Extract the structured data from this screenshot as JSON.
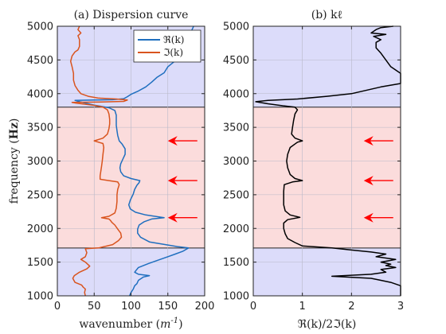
{
  "chart_data": [
    {
      "type": "line",
      "title": "(a) Dispersion curve",
      "xlabel": "wavenumber (m^-1)",
      "ylabel": "frequency (Hz)",
      "xlim": [
        0,
        200
      ],
      "ylim": [
        1000,
        5000
      ],
      "xticks": [
        0,
        50,
        100,
        150,
        200
      ],
      "yticks": [
        1000,
        1500,
        2000,
        2500,
        3000,
        3500,
        4000,
        4500,
        5000
      ],
      "grid": true,
      "legend": {
        "placement": "top-right",
        "entries": [
          "ℜ(k)",
          "ℑ(k)"
        ]
      },
      "bands": [
        {
          "from": 1000,
          "to": 1710,
          "color": "#dcdcfa"
        },
        {
          "from": 1710,
          "to": 3800,
          "color": "#fbdcdc"
        },
        {
          "from": 3800,
          "to": 5000,
          "color": "#dcdcfa"
        }
      ],
      "arrows": [
        {
          "y": 3300,
          "x_from": 190,
          "x_to": 150
        },
        {
          "y": 2710,
          "x_from": 190,
          "x_to": 150
        },
        {
          "y": 2160,
          "x_from": 190,
          "x_to": 150
        }
      ],
      "series": [
        {
          "name": "ℜ(k)",
          "color": "#1f6fbf",
          "points": [
            [
              98,
              1000
            ],
            [
              100,
              1050
            ],
            [
              103,
              1100
            ],
            [
              105,
              1150
            ],
            [
              108,
              1180
            ],
            [
              110,
              1230
            ],
            [
              117,
              1280
            ],
            [
              125,
              1300
            ],
            [
              110,
              1320
            ],
            [
              105,
              1350
            ],
            [
              107,
              1380
            ],
            [
              110,
              1420
            ],
            [
              124,
              1480
            ],
            [
              137,
              1530
            ],
            [
              150,
              1580
            ],
            [
              160,
              1620
            ],
            [
              170,
              1660
            ],
            [
              178,
              1710
            ],
            [
              163,
              1730
            ],
            [
              125,
              1800
            ],
            [
              113,
              1870
            ],
            [
              109,
              1930
            ],
            [
              109,
              1990
            ],
            [
              111,
              2050
            ],
            [
              118,
              2100
            ],
            [
              128,
              2140
            ],
            [
              145,
              2160
            ],
            [
              120,
              2200
            ],
            [
              106,
              2240
            ],
            [
              99,
              2290
            ],
            [
              97,
              2350
            ],
            [
              99,
              2420
            ],
            [
              103,
              2510
            ],
            [
              105,
              2580
            ],
            [
              108,
              2640
            ],
            [
              111,
              2680
            ],
            [
              112,
              2710
            ],
            [
              100,
              2740
            ],
            [
              90,
              2780
            ],
            [
              86,
              2840
            ],
            [
              85,
              2900
            ],
            [
              86,
              2960
            ],
            [
              89,
              3030
            ],
            [
              92,
              3100
            ],
            [
              92,
              3180
            ],
            [
              88,
              3250
            ],
            [
              84,
              3300
            ],
            [
              82,
              3380
            ],
            [
              81,
              3450
            ],
            [
              80,
              3530
            ],
            [
              80,
              3600
            ],
            [
              80,
              3680
            ],
            [
              78,
              3750
            ],
            [
              70,
              3790
            ],
            [
              50,
              3830
            ],
            [
              30,
              3880
            ],
            [
              24,
              3900
            ],
            [
              50,
              3905
            ],
            [
              75,
              3910
            ],
            [
              90,
              3925
            ],
            [
              95,
              3955
            ],
            [
              100,
              3990
            ],
            [
              110,
              4040
            ],
            [
              120,
              4100
            ],
            [
              128,
              4170
            ],
            [
              135,
              4240
            ],
            [
              145,
              4310
            ],
            [
              150,
              4400
            ],
            [
              158,
              4470
            ],
            [
              163,
              4570
            ],
            [
              170,
              4670
            ],
            [
              175,
              4780
            ],
            [
              180,
              4880
            ],
            [
              185,
              5000
            ]
          ]
        },
        {
          "name": "ℑ(k)",
          "color": "#d9541e",
          "points": [
            [
              38,
              1000
            ],
            [
              37,
              1050
            ],
            [
              38,
              1100
            ],
            [
              35,
              1130
            ],
            [
              33,
              1160
            ],
            [
              24,
              1200
            ],
            [
              21,
              1260
            ],
            [
              23,
              1300
            ],
            [
              30,
              1350
            ],
            [
              40,
              1400
            ],
            [
              44,
              1440
            ],
            [
              38,
              1500
            ],
            [
              32,
              1540
            ],
            [
              38,
              1580
            ],
            [
              40,
              1640
            ],
            [
              38,
              1700
            ],
            [
              56,
              1710
            ],
            [
              75,
              1760
            ],
            [
              83,
              1820
            ],
            [
              87,
              1870
            ],
            [
              86,
              1930
            ],
            [
              82,
              1990
            ],
            [
              78,
              2050
            ],
            [
              74,
              2090
            ],
            [
              72,
              2120
            ],
            [
              70,
              2140
            ],
            [
              60,
              2160
            ],
            [
              70,
              2180
            ],
            [
              78,
              2230
            ],
            [
              80,
              2300
            ],
            [
              81,
              2400
            ],
            [
              81,
              2500
            ],
            [
              82,
              2580
            ],
            [
              84,
              2650
            ],
            [
              82,
              2690
            ],
            [
              70,
              2710
            ],
            [
              58,
              2730
            ],
            [
              58,
              2780
            ],
            [
              59,
              2850
            ],
            [
              60,
              2920
            ],
            [
              61,
              3000
            ],
            [
              62,
              3100
            ],
            [
              63,
              3200
            ],
            [
              62,
              3260
            ],
            [
              50,
              3300
            ],
            [
              62,
              3340
            ],
            [
              68,
              3400
            ],
            [
              70,
              3480
            ],
            [
              71,
              3550
            ],
            [
              71,
              3620
            ],
            [
              70,
              3700
            ],
            [
              68,
              3760
            ],
            [
              62,
              3800
            ],
            [
              48,
              3830
            ],
            [
              25,
              3860
            ],
            [
              20,
              3870
            ],
            [
              60,
              3875
            ],
            [
              90,
              3885
            ],
            [
              95,
              3905
            ],
            [
              80,
              3920
            ],
            [
              55,
              3935
            ],
            [
              42,
              3960
            ],
            [
              32,
              4000
            ],
            [
              28,
              4050
            ],
            [
              24,
              4120
            ],
            [
              22,
              4200
            ],
            [
              22,
              4300
            ],
            [
              20,
              4400
            ],
            [
              18,
              4480
            ],
            [
              20,
              4560
            ],
            [
              24,
              4620
            ],
            [
              28,
              4650
            ],
            [
              30,
              4700
            ],
            [
              30,
              4800
            ],
            [
              28,
              4860
            ],
            [
              32,
              4900
            ],
            [
              28,
              4950
            ],
            [
              30,
              5000
            ]
          ]
        }
      ]
    },
    {
      "type": "line",
      "title": "(b) kℓ",
      "xlabel": "ℜ(k)/2ℑ(k)",
      "ylabel": "",
      "xlim": [
        0,
        3
      ],
      "ylim": [
        1000,
        5000
      ],
      "xticks": [
        0,
        1,
        2,
        3
      ],
      "yticks": [
        1000,
        1500,
        2000,
        2500,
        3000,
        3500,
        4000,
        4500,
        5000
      ],
      "grid": true,
      "bands": [
        {
          "from": 1000,
          "to": 1710,
          "color": "#dcdcfa"
        },
        {
          "from": 1710,
          "to": 3800,
          "color": "#fbdcdc"
        },
        {
          "from": 3800,
          "to": 5000,
          "color": "#dcdcfa"
        }
      ],
      "arrows": [
        {
          "y": 3300,
          "x_from": 2.85,
          "x_to": 2.25
        },
        {
          "y": 2710,
          "x_from": 2.85,
          "x_to": 2.25
        },
        {
          "y": 2160,
          "x_from": 2.85,
          "x_to": 2.25
        }
      ],
      "series": [
        {
          "name": "",
          "color": "#000000",
          "points": [
            [
              3,
              1000
            ],
            [
              3,
              1150
            ],
            [
              2.8,
              1200
            ],
            [
              2.6,
              1230
            ],
            [
              2.4,
              1260
            ],
            [
              1.6,
              1290
            ],
            [
              2.4,
              1320
            ],
            [
              2.7,
              1350
            ],
            [
              2.6,
              1390
            ],
            [
              2.9,
              1420
            ],
            [
              2.7,
              1450
            ],
            [
              2.8,
              1470
            ],
            [
              2.6,
              1500
            ],
            [
              2.9,
              1540
            ],
            [
              2.5,
              1580
            ],
            [
              2.7,
              1620
            ],
            [
              2.4,
              1650
            ],
            [
              2.0,
              1680
            ],
            [
              1.6,
              1710
            ],
            [
              1.0,
              1740
            ],
            [
              0.85,
              1790
            ],
            [
              0.7,
              1850
            ],
            [
              0.65,
              1920
            ],
            [
              0.62,
              2000
            ],
            [
              0.62,
              2080
            ],
            [
              0.7,
              2130
            ],
            [
              0.95,
              2165
            ],
            [
              0.75,
              2200
            ],
            [
              0.65,
              2260
            ],
            [
              0.62,
              2350
            ],
            [
              0.62,
              2450
            ],
            [
              0.62,
              2550
            ],
            [
              0.63,
              2650
            ],
            [
              0.8,
              2690
            ],
            [
              1.0,
              2710
            ],
            [
              0.85,
              2740
            ],
            [
              0.75,
              2800
            ],
            [
              0.7,
              2900
            ],
            [
              0.68,
              3000
            ],
            [
              0.7,
              3100
            ],
            [
              0.75,
              3200
            ],
            [
              0.9,
              3280
            ],
            [
              1.0,
              3300
            ],
            [
              0.85,
              3340
            ],
            [
              0.78,
              3400
            ],
            [
              0.8,
              3500
            ],
            [
              0.82,
              3600
            ],
            [
              0.85,
              3700
            ],
            [
              0.9,
              3760
            ],
            [
              0.85,
              3800
            ],
            [
              0.6,
              3820
            ],
            [
              0.3,
              3850
            ],
            [
              0.05,
              3880
            ],
            [
              0.3,
              3900
            ],
            [
              0.9,
              3920
            ],
            [
              1.5,
              3960
            ],
            [
              2.0,
              4000
            ],
            [
              2.6,
              4100
            ],
            [
              3.0,
              4150
            ],
            [
              3.0,
              4300
            ],
            [
              2.8,
              4400
            ],
            [
              2.7,
              4500
            ],
            [
              2.6,
              4600
            ],
            [
              2.5,
              4680
            ],
            [
              2.5,
              4760
            ],
            [
              2.6,
              4800
            ],
            [
              2.45,
              4850
            ],
            [
              2.7,
              4880
            ],
            [
              2.4,
              4900
            ],
            [
              2.5,
              4950
            ],
            [
              2.6,
              4980
            ],
            [
              2.85,
              5000
            ]
          ]
        }
      ]
    }
  ]
}
